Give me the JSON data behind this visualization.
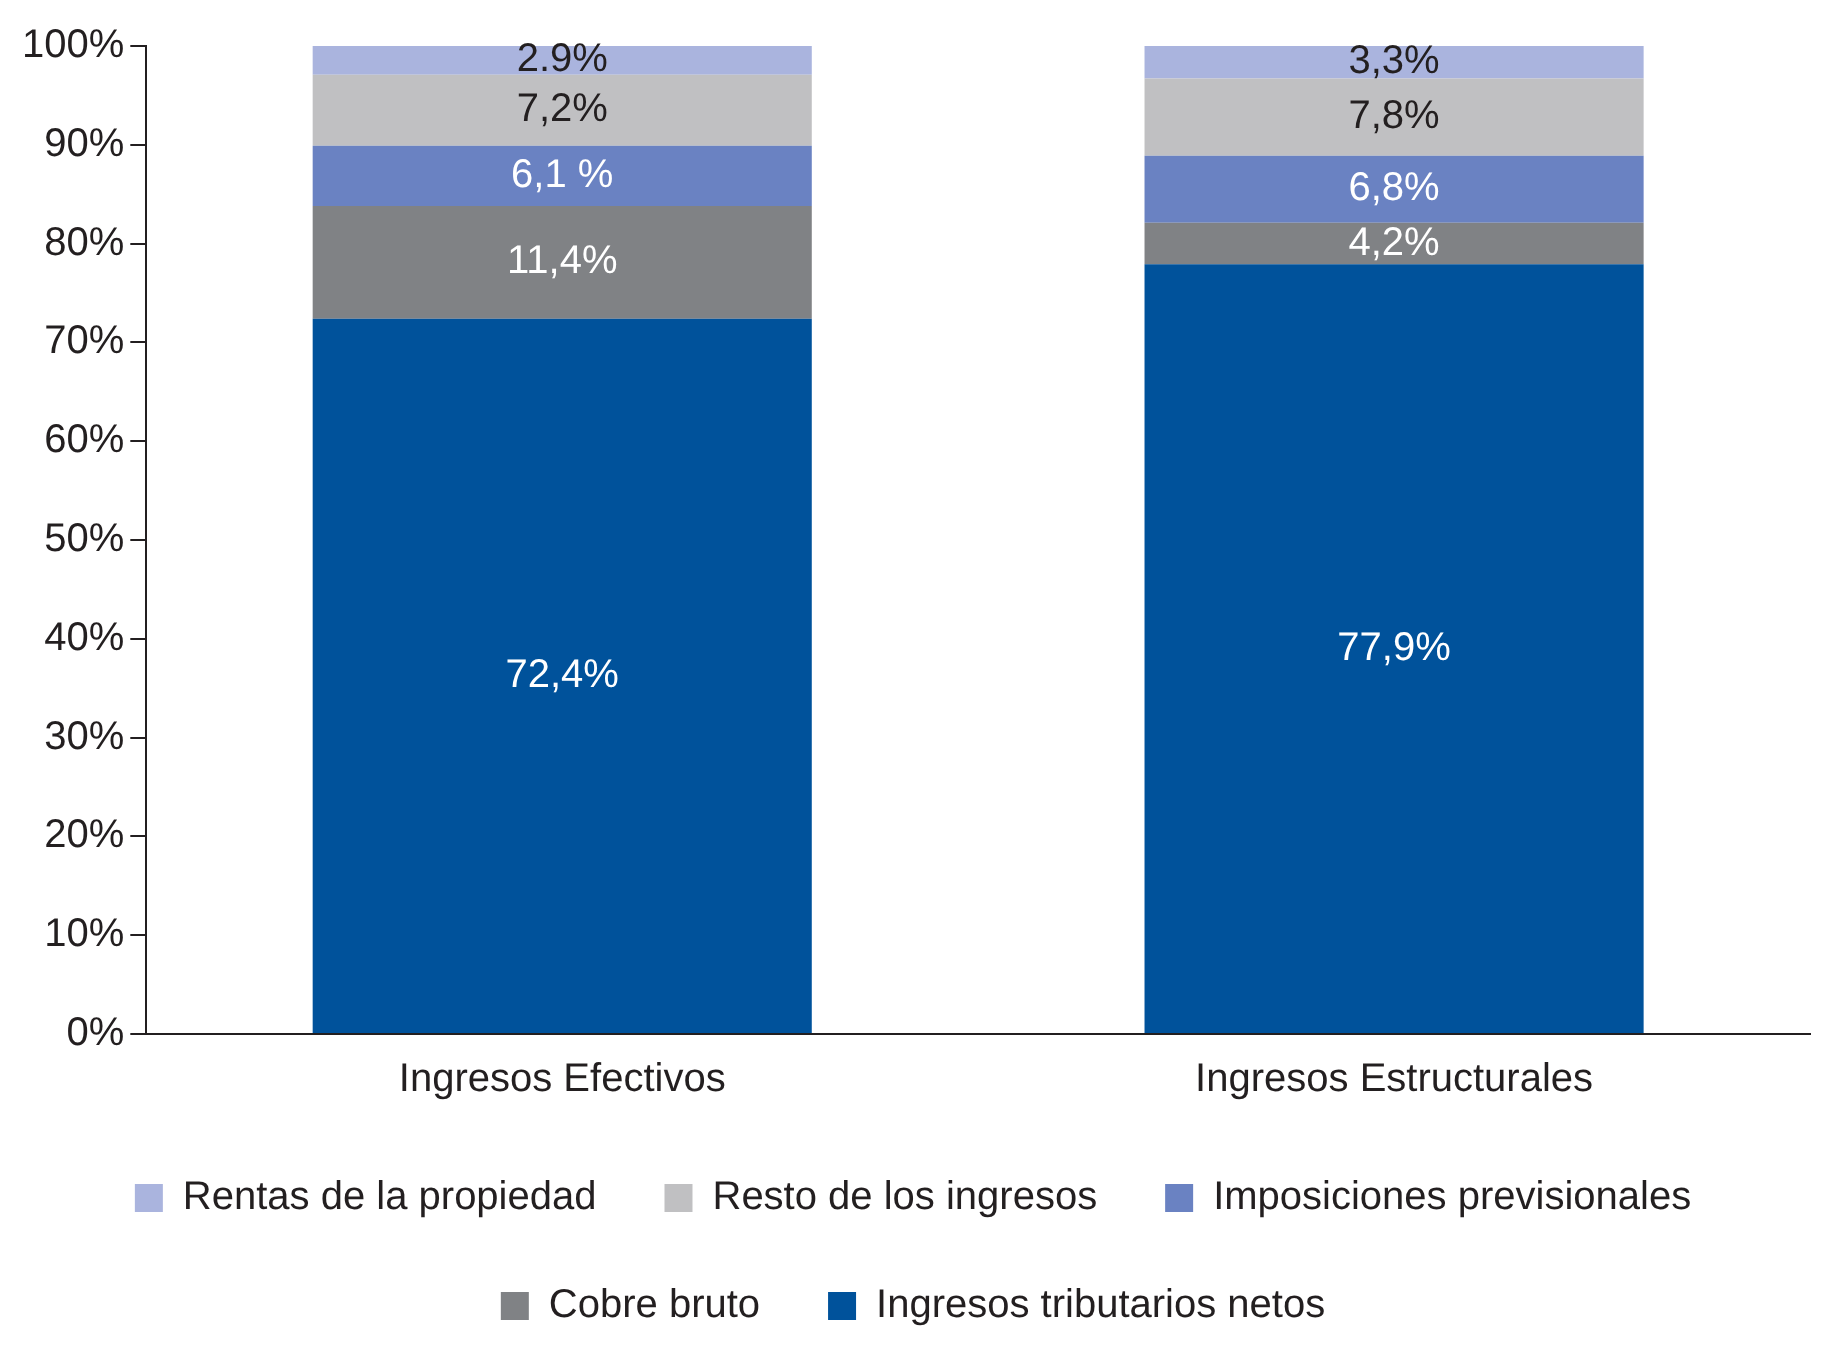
{
  "chart_data": {
    "type": "bar",
    "stacked": true,
    "categories": [
      "Ingresos Efectivos",
      "Ingresos Estructurales"
    ],
    "series": [
      {
        "name": "Ingresos tributarios netos",
        "color": "#00529b",
        "values": [
          72.4,
          77.9
        ],
        "value_labels": [
          "72,4%",
          "77,9%"
        ]
      },
      {
        "name": "Cobre bruto",
        "color": "#808285",
        "values": [
          11.4,
          4.2
        ],
        "value_labels": [
          "11,4%",
          "4,2%"
        ]
      },
      {
        "name": "Imposiciones previsionales",
        "color": "#6a82c2",
        "values": [
          6.1,
          6.8
        ],
        "value_labels": [
          "6,1 %",
          "6,8%"
        ]
      },
      {
        "name": "Resto de los ingresos",
        "color": "#c0c0c2",
        "values": [
          7.2,
          7.8
        ],
        "value_labels": [
          "7,2%",
          "7,8%"
        ]
      },
      {
        "name": "Rentas de la propiedad",
        "color": "#aab4de",
        "values": [
          2.9,
          3.3
        ],
        "value_labels": [
          "2.9%",
          "3,3%"
        ]
      }
    ],
    "ylim": [
      0,
      100
    ],
    "yticks": [
      {
        "value": 0,
        "label": "0%"
      },
      {
        "value": 10,
        "label": "10%"
      },
      {
        "value": 20,
        "label": "20%"
      },
      {
        "value": 30,
        "label": "30%"
      },
      {
        "value": 40,
        "label": "40%"
      },
      {
        "value": 50,
        "label": "50%"
      },
      {
        "value": 60,
        "label": "60%"
      },
      {
        "value": 70,
        "label": "70%"
      },
      {
        "value": 80,
        "label": "80%"
      },
      {
        "value": 90,
        "label": "90%"
      },
      {
        "value": 100,
        "label": "100%"
      }
    ],
    "grid": false,
    "legend": "bottom"
  }
}
